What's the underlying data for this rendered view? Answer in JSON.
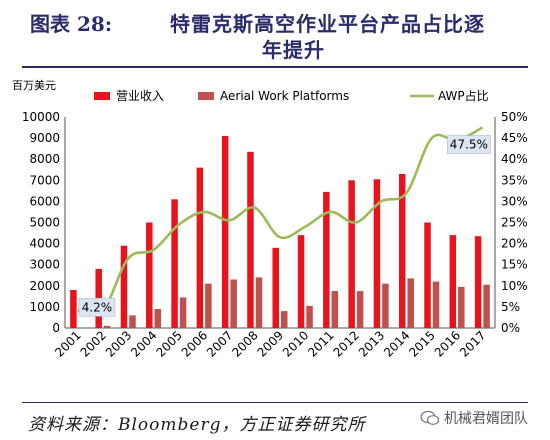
{
  "figure": {
    "label": "图表 28:",
    "title_line1": "特雷克斯高空作业平台产品占比逐",
    "title_line2": "年提升"
  },
  "source": "资料来源：Bloomberg，方正证券研究所",
  "watermark": {
    "text": "机械君婿团队",
    "icon": "wechat-icon"
  },
  "chart_data": {
    "type": "bar",
    "unit_label": "百万美元",
    "categories": [
      "2001",
      "2002",
      "2003",
      "2004",
      "2005",
      "2006",
      "2007",
      "2008",
      "2009",
      "2010",
      "2011",
      "2012",
      "2013",
      "2014",
      "2015",
      "2016",
      "2017"
    ],
    "series": [
      {
        "name": "营业收入",
        "type": "bar",
        "axis": "left",
        "color": "#e8141b",
        "values": [
          1800,
          2800,
          3900,
          5000,
          6100,
          7600,
          9100,
          8350,
          3800,
          4400,
          6450,
          7000,
          7050,
          7300,
          5000,
          4400,
          4350
        ]
      },
      {
        "name": "Aerial Work Platforms",
        "type": "bar",
        "axis": "left",
        "color": "#c0504d",
        "values": [
          0,
          100,
          600,
          900,
          1450,
          2100,
          2300,
          2400,
          800,
          1050,
          1750,
          1750,
          2100,
          2350,
          2200,
          1950,
          2050
        ]
      },
      {
        "name": "AWP占比",
        "type": "line",
        "axis": "right",
        "color": "#9bbb59",
        "values": [
          4.2,
          4.2,
          16.5,
          18.5,
          24.5,
          27.5,
          25.5,
          28.5,
          21.5,
          24,
          27.5,
          25,
          30,
          32,
          45,
          44.5,
          47.5
        ]
      }
    ],
    "left_axis": {
      "min": 0,
      "max": 10000,
      "step": 1000,
      "ticks": [
        "0",
        "1000",
        "2000",
        "3000",
        "4000",
        "5000",
        "6000",
        "7000",
        "8000",
        "9000",
        "10000"
      ]
    },
    "right_axis": {
      "min": 0,
      "max": 50,
      "step": 5,
      "ticks": [
        "0%",
        "5%",
        "10%",
        "15%",
        "20%",
        "25%",
        "30%",
        "35%",
        "40%",
        "45%",
        "50%"
      ]
    },
    "annotations": [
      {
        "series": "AWP占比",
        "category": "2002",
        "text": "4.2%"
      },
      {
        "series": "AWP占比",
        "category": "2017",
        "text": "47.5%"
      }
    ],
    "legend_position": "top",
    "grid": false
  }
}
